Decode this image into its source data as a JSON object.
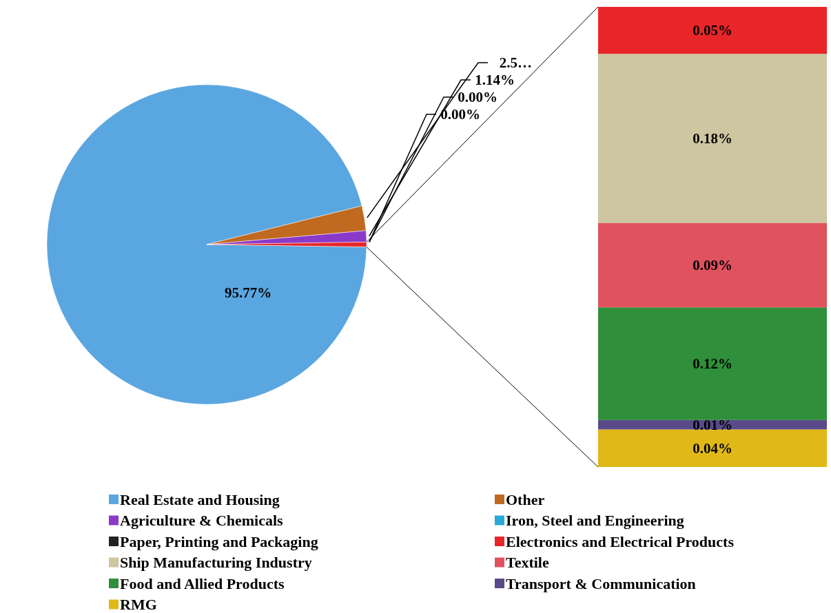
{
  "chart_data": [
    {
      "type": "pie",
      "categories": [
        "Real Estate and Housing",
        "Other",
        "Agriculture & Chemicals",
        "Iron, Steel and Engineering",
        "Paper, Printing and Packaging",
        null
      ],
      "values": [
        95.77,
        2.5,
        1.14,
        0.0,
        0.0,
        0.49
      ],
      "value_labels": [
        "95.77%",
        "2.5…",
        "1.14%",
        "0.00%",
        "0.00%",
        null
      ],
      "colors": [
        "#5aa6e0",
        "#c06a20",
        "#8a3ac8",
        "#2aa8d8",
        "#222222",
        "#e8262a"
      ],
      "legend": "bottom"
    },
    {
      "type": "bar",
      "stacked": true,
      "categories": [
        null
      ],
      "legend": "bottom",
      "series": [
        {
          "name": "RMG",
          "color": "#e0b818",
          "values": [
            0.04
          ],
          "value_labels": [
            "0.04%"
          ]
        },
        {
          "name": "Transport & Communication",
          "color": "#5a4a8a",
          "values": [
            0.01
          ],
          "value_labels": [
            "0.01%"
          ]
        },
        {
          "name": "Food and Allied Products",
          "color": "#2f8f3a",
          "values": [
            0.12
          ],
          "value_labels": [
            "0.12%"
          ]
        },
        {
          "name": "Textile",
          "color": "#e0525e",
          "values": [
            0.09
          ],
          "value_labels": [
            "0.09%"
          ]
        },
        {
          "name": "Ship Manufacturing Industry",
          "color": "#cec6a0",
          "values": [
            0.18
          ],
          "value_labels": [
            "0.18%"
          ]
        },
        {
          "name": "Electronics and Electrical Products",
          "color": "#e8262a",
          "values": [
            0.05
          ],
          "value_labels": [
            "0.05%"
          ]
        }
      ]
    }
  ]
}
